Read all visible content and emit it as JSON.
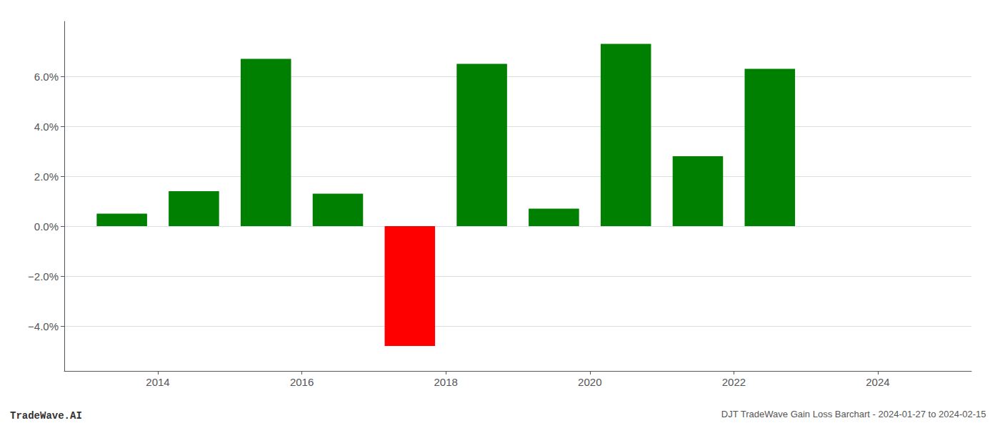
{
  "chart_data": {
    "type": "bar",
    "title": "DJT TradeWave Gain Loss Barchart - 2024-01-27 to 2024-02-15",
    "annotations": [
      "TradeWave.AI"
    ],
    "x": [
      2013,
      2014,
      2015,
      2016,
      2017,
      2018,
      2019,
      2020,
      2021,
      2022
    ],
    "values": [
      0.005,
      0.014,
      0.067,
      0.013,
      -0.048,
      0.065,
      0.007,
      0.073,
      0.028,
      0.063
    ],
    "colors": [
      "#008000",
      "#008000",
      "#008000",
      "#008000",
      "#ff0000",
      "#008000",
      "#008000",
      "#008000",
      "#008000",
      "#008000"
    ],
    "xlim": [
      2012.2,
      2024.8
    ],
    "xticks": [
      {
        "value": 2013.5,
        "label": "2014"
      },
      {
        "value": 2015.5,
        "label": "2016"
      },
      {
        "value": 2017.5,
        "label": "2018"
      },
      {
        "value": 2019.5,
        "label": "2020"
      },
      {
        "value": 2021.5,
        "label": "2022"
      },
      {
        "value": 2023.5,
        "label": "2024"
      }
    ],
    "ylim": [
      -0.058,
      0.082
    ],
    "yticks": [
      {
        "value": -0.04,
        "label": "−4.0%"
      },
      {
        "value": -0.02,
        "label": "−2.0%"
      },
      {
        "value": 0.0,
        "label": "0.0%"
      },
      {
        "value": 0.02,
        "label": "2.0%"
      },
      {
        "value": 0.04,
        "label": "4.0%"
      },
      {
        "value": 0.06,
        "label": "6.0%"
      }
    ],
    "grid": true
  }
}
